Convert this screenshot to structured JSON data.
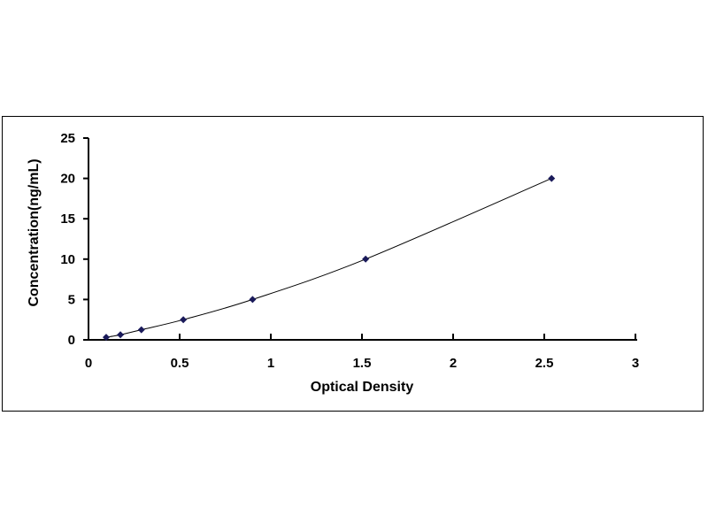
{
  "chart_data": {
    "type": "scatter",
    "title": "",
    "xlabel": "Optical Density",
    "ylabel": "Concentration(ng/mL)",
    "xlim": [
      0,
      3
    ],
    "ylim": [
      0,
      25
    ],
    "xticks": [
      "0",
      "0.5",
      "1",
      "1.5",
      "2",
      "2.5",
      "3"
    ],
    "yticks": [
      "0",
      "5",
      "10",
      "15",
      "20",
      "25"
    ],
    "grid": false,
    "legend": "none",
    "trendline": "smooth curve through points",
    "marker": "diamond",
    "colors": {
      "marker": "#1a1a5a",
      "line": "#000000"
    },
    "points": [
      {
        "x": 0.097,
        "y": 0.31
      },
      {
        "x": 0.175,
        "y": 0.63
      },
      {
        "x": 0.29,
        "y": 1.25
      },
      {
        "x": 0.52,
        "y": 2.5
      },
      {
        "x": 0.9,
        "y": 5
      },
      {
        "x": 1.52,
        "y": 10
      },
      {
        "x": 2.54,
        "y": 20
      }
    ]
  }
}
